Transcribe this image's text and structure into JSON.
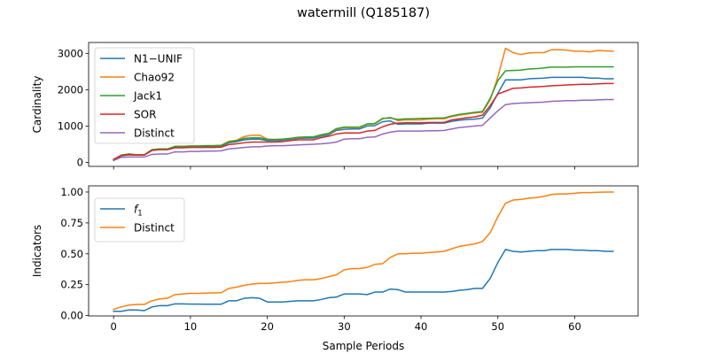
{
  "figure": {
    "title": "watermill (Q185187)"
  },
  "chart_data": [
    {
      "type": "line",
      "title": "",
      "xlabel": "",
      "ylabel": "Cardinality",
      "xlim": [
        -3.25,
        68.25
      ],
      "ylim": [
        -110,
        3300
      ],
      "xticks": [
        0,
        10,
        20,
        30,
        40,
        50,
        60
      ],
      "show_xtick_labels": false,
      "yticks": [
        0,
        1000,
        2000,
        3000
      ],
      "ytick_labels": [
        "0",
        "1000",
        "2000",
        "3000"
      ],
      "grid": false,
      "legend": "top-left",
      "x": [
        0,
        1,
        2,
        3,
        4,
        5,
        6,
        7,
        8,
        9,
        10,
        11,
        12,
        13,
        14,
        15,
        16,
        17,
        18,
        19,
        20,
        21,
        22,
        23,
        24,
        25,
        26,
        27,
        28,
        29,
        30,
        31,
        32,
        33,
        34,
        35,
        36,
        37,
        38,
        39,
        40,
        41,
        42,
        43,
        44,
        45,
        46,
        47,
        48,
        49,
        50,
        51,
        52,
        53,
        54,
        55,
        56,
        57,
        58,
        59,
        60,
        61,
        62,
        63,
        64,
        65
      ],
      "series": [
        {
          "name": "N1−UNIF",
          "color": "#1f77b4",
          "values": [
            80,
            180,
            210,
            200,
            205,
            330,
            360,
            360,
            420,
            420,
            430,
            430,
            440,
            440,
            450,
            540,
            570,
            620,
            640,
            640,
            600,
            600,
            610,
            640,
            660,
            670,
            670,
            720,
            760,
            880,
            910,
            920,
            920,
            1000,
            1010,
            1120,
            1140,
            1050,
            1060,
            1060,
            1060,
            1080,
            1080,
            1080,
            1130,
            1160,
            1180,
            1190,
            1220,
            1500,
            1900,
            2270,
            2270,
            2270,
            2300,
            2310,
            2320,
            2340,
            2340,
            2340,
            2340,
            2340,
            2320,
            2320,
            2300,
            2300
          ]
        },
        {
          "name": "Chao92",
          "color": "#ff7f0e",
          "values": [
            80,
            200,
            230,
            210,
            210,
            350,
            370,
            370,
            440,
            440,
            450,
            450,
            460,
            460,
            470,
            580,
            610,
            710,
            750,
            750,
            640,
            630,
            640,
            660,
            680,
            700,
            700,
            750,
            790,
            910,
            960,
            960,
            960,
            1050,
            1060,
            1200,
            1240,
            1150,
            1170,
            1170,
            1170,
            1190,
            1200,
            1200,
            1260,
            1300,
            1330,
            1360,
            1380,
            1720,
            2350,
            3140,
            3020,
            2970,
            3010,
            3020,
            3020,
            3100,
            3100,
            3090,
            3060,
            3060,
            3040,
            3080,
            3070,
            3060
          ]
        },
        {
          "name": "Jack1",
          "color": "#2ca02c",
          "values": [
            80,
            200,
            230,
            210,
            210,
            350,
            370,
            370,
            440,
            440,
            450,
            450,
            460,
            460,
            470,
            560,
            600,
            660,
            680,
            680,
            630,
            630,
            640,
            660,
            690,
            700,
            700,
            760,
            800,
            930,
            970,
            970,
            970,
            1060,
            1070,
            1210,
            1220,
            1180,
            1200,
            1200,
            1210,
            1210,
            1220,
            1220,
            1280,
            1320,
            1350,
            1380,
            1400,
            1760,
            2250,
            2520,
            2530,
            2540,
            2570,
            2580,
            2600,
            2620,
            2620,
            2620,
            2630,
            2630,
            2630,
            2630,
            2630,
            2630
          ]
        },
        {
          "name": "SOR",
          "color": "#d62728",
          "values": [
            80,
            190,
            210,
            200,
            205,
            330,
            350,
            350,
            400,
            400,
            410,
            410,
            410,
            410,
            420,
            490,
            510,
            540,
            560,
            560,
            560,
            560,
            570,
            600,
            620,
            620,
            620,
            680,
            720,
            780,
            810,
            810,
            810,
            860,
            880,
            980,
            1050,
            1080,
            1090,
            1090,
            1090,
            1100,
            1100,
            1100,
            1170,
            1200,
            1230,
            1250,
            1300,
            1560,
            1880,
            1960,
            2040,
            2050,
            2070,
            2080,
            2090,
            2110,
            2120,
            2130,
            2140,
            2150,
            2150,
            2160,
            2170,
            2170
          ]
        },
        {
          "name": "Distinct",
          "color": "#9467bd",
          "values": [
            50,
            140,
            150,
            150,
            150,
            220,
            230,
            230,
            290,
            290,
            300,
            300,
            310,
            310,
            320,
            370,
            390,
            410,
            430,
            430,
            450,
            460,
            460,
            470,
            480,
            490,
            500,
            510,
            530,
            560,
            640,
            650,
            650,
            690,
            700,
            780,
            830,
            860,
            860,
            860,
            860,
            870,
            870,
            880,
            920,
            960,
            980,
            1000,
            1020,
            1220,
            1420,
            1590,
            1620,
            1630,
            1640,
            1650,
            1660,
            1680,
            1690,
            1700,
            1700,
            1710,
            1710,
            1720,
            1730,
            1730
          ]
        }
      ]
    },
    {
      "type": "line",
      "title": "",
      "xlabel": "Sample Periods",
      "ylabel": "Indicators",
      "xlim": [
        -3.25,
        68.25
      ],
      "ylim": [
        -0.003,
        1.05
      ],
      "xticks": [
        0,
        10,
        20,
        30,
        40,
        50,
        60
      ],
      "xtick_labels": [
        "0",
        "10",
        "20",
        "30",
        "40",
        "50",
        "60"
      ],
      "yticks": [
        0,
        0.25,
        0.5,
        0.75,
        1.0
      ],
      "ytick_labels": [
        "0.00",
        "0.25",
        "0.50",
        "0.75",
        "1.00"
      ],
      "grid": false,
      "legend": "top-left",
      "x": [
        0,
        1,
        2,
        3,
        4,
        5,
        6,
        7,
        8,
        9,
        10,
        11,
        12,
        13,
        14,
        15,
        16,
        17,
        18,
        19,
        20,
        21,
        22,
        23,
        24,
        25,
        26,
        27,
        28,
        29,
        30,
        31,
        32,
        33,
        34,
        35,
        36,
        37,
        38,
        39,
        40,
        41,
        42,
        43,
        44,
        45,
        46,
        47,
        48,
        49,
        50,
        51,
        52,
        53,
        54,
        55,
        56,
        57,
        58,
        59,
        60,
        61,
        62,
        63,
        64,
        65
      ],
      "series": [
        {
          "name": "f",
          "name_subscript": "1",
          "color": "#1f77b4",
          "values": [
            0.035,
            0.035,
            0.045,
            0.045,
            0.04,
            0.07,
            0.08,
            0.08,
            0.095,
            0.095,
            0.093,
            0.093,
            0.092,
            0.092,
            0.092,
            0.12,
            0.12,
            0.14,
            0.145,
            0.14,
            0.11,
            0.11,
            0.11,
            0.115,
            0.12,
            0.12,
            0.12,
            0.13,
            0.145,
            0.15,
            0.175,
            0.175,
            0.175,
            0.17,
            0.19,
            0.19,
            0.215,
            0.21,
            0.19,
            0.19,
            0.19,
            0.19,
            0.19,
            0.19,
            0.195,
            0.205,
            0.21,
            0.22,
            0.22,
            0.3,
            0.43,
            0.535,
            0.52,
            0.515,
            0.52,
            0.525,
            0.525,
            0.535,
            0.535,
            0.535,
            0.53,
            0.53,
            0.525,
            0.525,
            0.52,
            0.52
          ]
        },
        {
          "name": "Distinct",
          "color": "#ff7f0e",
          "values": [
            0.05,
            0.07,
            0.085,
            0.09,
            0.09,
            0.12,
            0.135,
            0.14,
            0.17,
            0.175,
            0.18,
            0.18,
            0.182,
            0.183,
            0.185,
            0.22,
            0.23,
            0.245,
            0.255,
            0.26,
            0.26,
            0.265,
            0.27,
            0.275,
            0.285,
            0.29,
            0.29,
            0.3,
            0.315,
            0.33,
            0.37,
            0.38,
            0.38,
            0.39,
            0.415,
            0.42,
            0.47,
            0.5,
            0.5,
            0.505,
            0.505,
            0.51,
            0.515,
            0.52,
            0.54,
            0.56,
            0.57,
            0.58,
            0.6,
            0.67,
            0.8,
            0.91,
            0.935,
            0.94,
            0.95,
            0.955,
            0.965,
            0.98,
            0.985,
            0.985,
            0.99,
            0.995,
            0.995,
            0.998,
            1.0,
            1.0
          ]
        }
      ]
    }
  ]
}
